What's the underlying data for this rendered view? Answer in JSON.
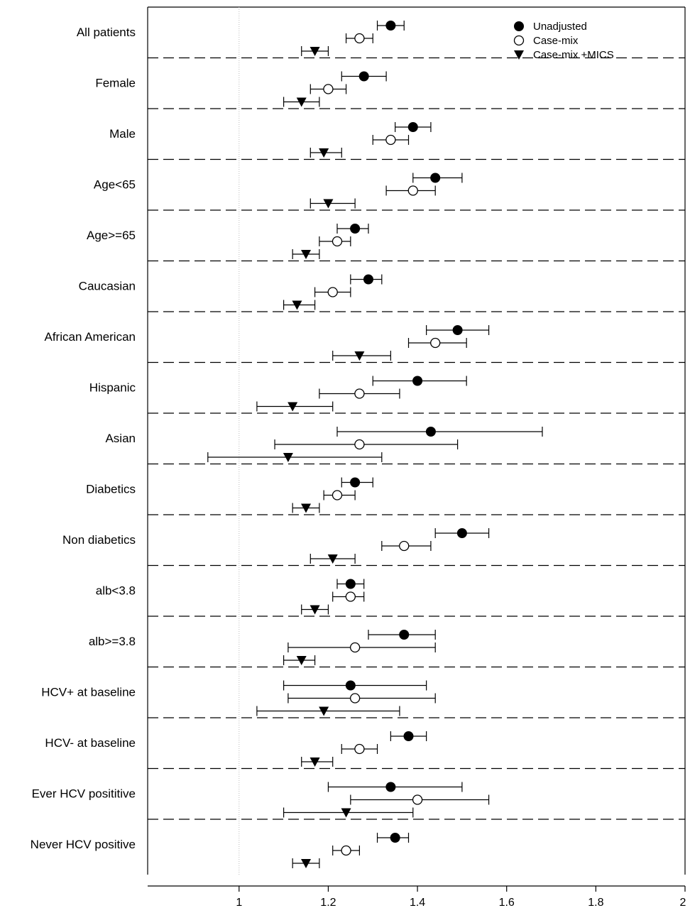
{
  "chart_data": {
    "type": "forest",
    "x_ticks": [
      "1",
      "1.2",
      "1.4",
      "1.6",
      "1.8",
      "2"
    ],
    "xlim": [
      0.795,
      2.0
    ],
    "reference_line": 1.0,
    "legend_position": "top-right",
    "series": [
      {
        "name": "Unadjusted",
        "marker": "filled-circle"
      },
      {
        "name": "Case-mix",
        "marker": "open-circle"
      },
      {
        "name": "Case-mix +MICS",
        "marker": "filled-triangle-down"
      }
    ],
    "groups": [
      {
        "label": "All patients",
        "estimates": [
          [
            1.34,
            1.31,
            1.37
          ],
          [
            1.27,
            1.24,
            1.3
          ],
          [
            1.17,
            1.14,
            1.2
          ]
        ]
      },
      {
        "label": "Female",
        "estimates": [
          [
            1.28,
            1.23,
            1.33
          ],
          [
            1.2,
            1.16,
            1.24
          ],
          [
            1.14,
            1.1,
            1.18
          ]
        ]
      },
      {
        "label": "Male",
        "estimates": [
          [
            1.39,
            1.35,
            1.43
          ],
          [
            1.34,
            1.3,
            1.38
          ],
          [
            1.19,
            1.16,
            1.23
          ]
        ]
      },
      {
        "label": "Age<65",
        "estimates": [
          [
            1.44,
            1.39,
            1.5
          ],
          [
            1.39,
            1.33,
            1.44
          ],
          [
            1.2,
            1.16,
            1.26
          ]
        ]
      },
      {
        "label": "Age>=65",
        "estimates": [
          [
            1.26,
            1.22,
            1.29
          ],
          [
            1.22,
            1.18,
            1.25
          ],
          [
            1.15,
            1.12,
            1.18
          ]
        ]
      },
      {
        "label": "Caucasian",
        "estimates": [
          [
            1.29,
            1.25,
            1.32
          ],
          [
            1.21,
            1.17,
            1.25
          ],
          [
            1.13,
            1.1,
            1.17
          ]
        ]
      },
      {
        "label": "African American",
        "estimates": [
          [
            1.49,
            1.42,
            1.56
          ],
          [
            1.44,
            1.38,
            1.51
          ],
          [
            1.27,
            1.21,
            1.34
          ]
        ]
      },
      {
        "label": "Hispanic",
        "estimates": [
          [
            1.4,
            1.3,
            1.51
          ],
          [
            1.27,
            1.18,
            1.36
          ],
          [
            1.12,
            1.04,
            1.21
          ]
        ]
      },
      {
        "label": "Asian",
        "estimates": [
          [
            1.43,
            1.22,
            1.68
          ],
          [
            1.27,
            1.08,
            1.49
          ],
          [
            1.11,
            0.93,
            1.32
          ]
        ]
      },
      {
        "label": "Diabetics",
        "estimates": [
          [
            1.26,
            1.23,
            1.3
          ],
          [
            1.22,
            1.19,
            1.26
          ],
          [
            1.15,
            1.12,
            1.18
          ]
        ]
      },
      {
        "label": "Non diabetics",
        "estimates": [
          [
            1.5,
            1.44,
            1.56
          ],
          [
            1.37,
            1.32,
            1.43
          ],
          [
            1.21,
            1.16,
            1.26
          ]
        ]
      },
      {
        "label": "alb<3.8",
        "estimates": [
          [
            1.25,
            1.22,
            1.28
          ],
          [
            1.25,
            1.21,
            1.28
          ],
          [
            1.17,
            1.14,
            1.2
          ]
        ]
      },
      {
        "label": "alb>=3.8",
        "estimates": [
          [
            1.37,
            1.29,
            1.44
          ],
          [
            1.26,
            1.11,
            1.44
          ],
          [
            1.14,
            1.1,
            1.17
          ]
        ]
      },
      {
        "label": "HCV+ at baseline",
        "estimates": [
          [
            1.25,
            1.1,
            1.42
          ],
          [
            1.26,
            1.11,
            1.44
          ],
          [
            1.19,
            1.04,
            1.36
          ]
        ]
      },
      {
        "label": "HCV- at baseline",
        "estimates": [
          [
            1.38,
            1.34,
            1.42
          ],
          [
            1.27,
            1.23,
            1.31
          ],
          [
            1.17,
            1.14,
            1.21
          ]
        ]
      },
      {
        "label": "Ever HCV posititive",
        "estimates": [
          [
            1.34,
            1.2,
            1.5
          ],
          [
            1.4,
            1.25,
            1.56
          ],
          [
            1.24,
            1.1,
            1.39
          ]
        ]
      },
      {
        "label": "Never HCV positive",
        "estimates": [
          [
            1.35,
            1.31,
            1.38
          ],
          [
            1.24,
            1.21,
            1.27
          ],
          [
            1.15,
            1.12,
            1.18
          ]
        ]
      }
    ]
  }
}
